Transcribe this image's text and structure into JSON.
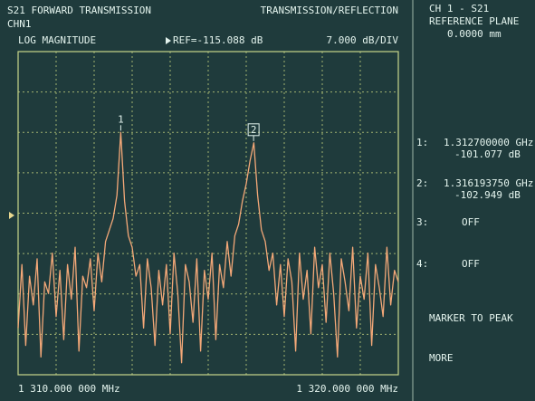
{
  "header": {
    "left": "S21 FORWARD TRANSMISSION",
    "right": "TRANSMISSION/REFLECTION",
    "channel": "CHN1",
    "format": "LOG MAGNITUDE",
    "reference": "REF=-115.088 dB",
    "scale": "7.000 dB/DIV"
  },
  "chart_data": {
    "type": "line",
    "x": [
      1310.0,
      1310.1,
      1310.2,
      1310.3,
      1310.4,
      1310.5,
      1310.6,
      1310.7,
      1310.8,
      1310.9,
      1311.0,
      1311.1,
      1311.2,
      1311.3,
      1311.4,
      1311.5,
      1311.6,
      1311.7,
      1311.8,
      1311.9,
      1312.0,
      1312.1,
      1312.2,
      1312.3,
      1312.4,
      1312.5,
      1312.6,
      1312.7,
      1312.8,
      1312.9,
      1313.0,
      1313.1,
      1313.2,
      1313.3,
      1313.4,
      1313.5,
      1313.6,
      1313.7,
      1313.8,
      1313.9,
      1314.0,
      1314.1,
      1314.2,
      1314.3,
      1314.4,
      1314.5,
      1314.6,
      1314.7,
      1314.8,
      1314.9,
      1315.0,
      1315.1,
      1315.2,
      1315.3,
      1315.4,
      1315.5,
      1315.6,
      1315.7,
      1315.8,
      1315.9,
      1316.0,
      1316.1,
      1316.2,
      1316.3,
      1316.4,
      1316.5,
      1316.6,
      1316.7,
      1316.8,
      1316.9,
      1317.0,
      1317.1,
      1317.2,
      1317.3,
      1317.4,
      1317.5,
      1317.6,
      1317.7,
      1317.8,
      1317.9,
      1318.0,
      1318.1,
      1318.2,
      1318.3,
      1318.4,
      1318.5,
      1318.6,
      1318.7,
      1318.8,
      1318.9,
      1319.0,
      1319.1,
      1319.2,
      1319.3,
      1319.4,
      1319.5,
      1319.6,
      1319.7,
      1319.8,
      1319.9,
      1320.0
    ],
    "series": [
      {
        "color": "#f4a878",
        "values": [
          -135,
          -124,
          -138,
          -126,
          -131,
          -123,
          -140,
          -127,
          -129,
          -122,
          -133,
          -125,
          -137,
          -124,
          -130,
          -121,
          -139,
          -126,
          -128,
          -123,
          -132,
          -122,
          -127,
          -120,
          -118,
          -116,
          -112,
          -101.1,
          -113,
          -119,
          -121,
          -126,
          -124,
          -135,
          -123,
          -128,
          -138,
          -125,
          -131,
          -124,
          -136,
          -122,
          -129,
          -141,
          -124,
          -127,
          -134,
          -123,
          -139,
          -125,
          -130,
          -122,
          -137,
          -124,
          -128,
          -120,
          -126,
          -119,
          -117,
          -113,
          -110,
          -106,
          -102.9,
          -112,
          -118,
          -120,
          -125,
          -122,
          -131,
          -124,
          -133,
          -123,
          -127,
          -139,
          -122,
          -130,
          -125,
          -136,
          -121,
          -128,
          -124,
          -134,
          -122,
          -129,
          -140,
          -123,
          -127,
          -132,
          -121,
          -135,
          -126,
          -130,
          -122,
          -138,
          -124,
          -128,
          -133,
          -121,
          -131,
          -125,
          -127
        ]
      }
    ],
    "xlim": [
      1310,
      1320
    ],
    "ylim": [
      -143.088,
      -87.088
    ],
    "grid": true,
    "start_label": "1 310.000 000 MHz",
    "stop_label": "1 320.000 000 MHz",
    "markers": [
      {
        "label": "1",
        "x": 1312.7
      },
      {
        "label": "2",
        "x": 1316.19375
      }
    ]
  },
  "side_panel": {
    "title": "CH 1 - S21",
    "subtitle": "REFERENCE PLANE",
    "offset": "0.0000 mm",
    "markers": [
      {
        "num": "1:",
        "freq": "1.312700000 GHz",
        "level": "-101.077 dB"
      },
      {
        "num": "2:",
        "freq": "1.316193750 GHz",
        "level": "-102.949 dB"
      },
      {
        "num": "3:",
        "state": "OFF"
      },
      {
        "num": "4:",
        "state": "OFF"
      }
    ],
    "softkeys": [
      "MARKER TO PEAK",
      "MORE"
    ]
  }
}
